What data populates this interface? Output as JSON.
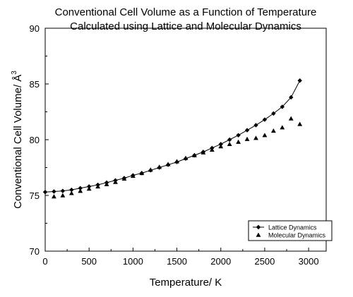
{
  "chart_data": {
    "type": "scatter",
    "title": "Conventional Cell Volume as a Function of Temperature",
    "subtitle": "Calculated using Lattice and Molecular Dynamics",
    "xlabel": "Temperature/ K",
    "ylabel": "Conventional Cell Volume/ Å",
    "ylabel_superscript": "3",
    "xlim": [
      0,
      3200
    ],
    "ylim": [
      70,
      90
    ],
    "x_ticks": [
      0,
      500,
      1000,
      1500,
      2000,
      2500,
      3000
    ],
    "y_ticks": [
      70,
      75,
      80,
      85,
      90
    ],
    "grid": false,
    "legend_position": "bottom-right",
    "series": [
      {
        "name": "Lattice Dynamics",
        "marker": "diamond",
        "line": true,
        "x": [
          0,
          100,
          200,
          300,
          400,
          500,
          600,
          700,
          800,
          900,
          1000,
          1100,
          1200,
          1300,
          1400,
          1500,
          1600,
          1700,
          1800,
          1900,
          2000,
          2100,
          2200,
          2300,
          2400,
          2500,
          2600,
          2700,
          2800,
          2900
        ],
        "y": [
          75.3,
          75.35,
          75.4,
          75.5,
          75.65,
          75.8,
          75.95,
          76.15,
          76.35,
          76.55,
          76.8,
          77.0,
          77.25,
          77.5,
          77.75,
          78.0,
          78.3,
          78.6,
          78.9,
          79.25,
          79.6,
          80.0,
          80.4,
          80.85,
          81.3,
          81.8,
          82.35,
          82.95,
          83.8,
          85.3
        ]
      },
      {
        "name": "Molecular Dynamics",
        "marker": "triangle",
        "line": false,
        "x": [
          100,
          200,
          300,
          400,
          500,
          600,
          700,
          800,
          900,
          1000,
          1100,
          1200,
          1300,
          1400,
          1500,
          1600,
          1700,
          1800,
          1900,
          2000,
          2100,
          2200,
          2300,
          2400,
          2500,
          2600,
          2700,
          2800,
          2900
        ],
        "y": [
          74.9,
          75.0,
          75.2,
          75.4,
          75.6,
          75.8,
          76.0,
          76.2,
          76.5,
          76.75,
          77.0,
          77.3,
          77.55,
          77.8,
          78.05,
          78.35,
          78.6,
          78.85,
          79.1,
          79.4,
          79.6,
          79.8,
          80.05,
          80.15,
          80.4,
          80.8,
          81.1,
          81.9,
          81.4
        ]
      }
    ]
  }
}
